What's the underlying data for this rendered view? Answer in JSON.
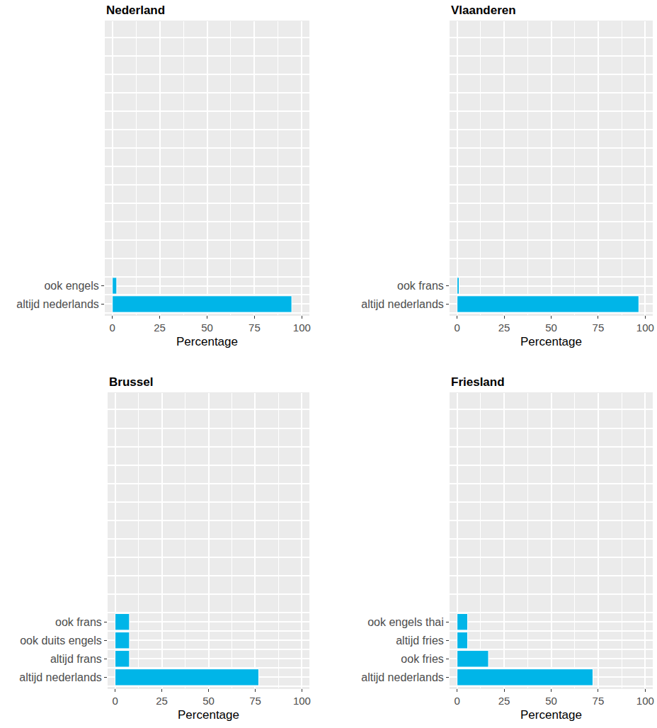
{
  "chart_data": [
    {
      "type": "bar",
      "title": "Nederland",
      "orientation": "horizontal",
      "color": "#00B5E8",
      "grid": true,
      "categories": [
        "altijd nederlands",
        "ook engels"
      ],
      "values": [
        94.7,
        2.3
      ],
      "xlabel": "Percentage",
      "xlim": [
        -4,
        104
      ],
      "xticks": [
        0,
        25,
        50,
        75,
        100
      ]
    },
    {
      "type": "bar",
      "title": "Vlaanderen",
      "orientation": "horizontal",
      "color": "#00B5E8",
      "grid": true,
      "categories": [
        "altijd nederlands",
        "ook frans"
      ],
      "values": [
        96.6,
        1.1
      ],
      "xlabel": "Percentage",
      "xlim": [
        -4,
        104
      ],
      "xticks": [
        0,
        25,
        50,
        75,
        100
      ]
    },
    {
      "type": "bar",
      "title": "Brussel",
      "orientation": "horizontal",
      "color": "#00B5E8",
      "grid": true,
      "categories": [
        "altijd nederlands",
        "altijd frans",
        "ook duits engels",
        "ook frans"
      ],
      "values": [
        76.9,
        7.7,
        7.7,
        7.7
      ],
      "xlabel": "Percentage",
      "xlim": [
        -4,
        104
      ],
      "xticks": [
        0,
        25,
        50,
        75,
        100
      ]
    },
    {
      "type": "bar",
      "title": "Friesland",
      "orientation": "horizontal",
      "color": "#00B5E8",
      "grid": true,
      "categories": [
        "altijd nederlands",
        "ook fries",
        "altijd fries",
        "ook engels thai"
      ],
      "values": [
        72.2,
        16.7,
        5.6,
        5.6
      ],
      "xlabel": "Percentage",
      "xlim": [
        -4,
        104
      ],
      "xticks": [
        0,
        25,
        50,
        75,
        100
      ]
    }
  ]
}
